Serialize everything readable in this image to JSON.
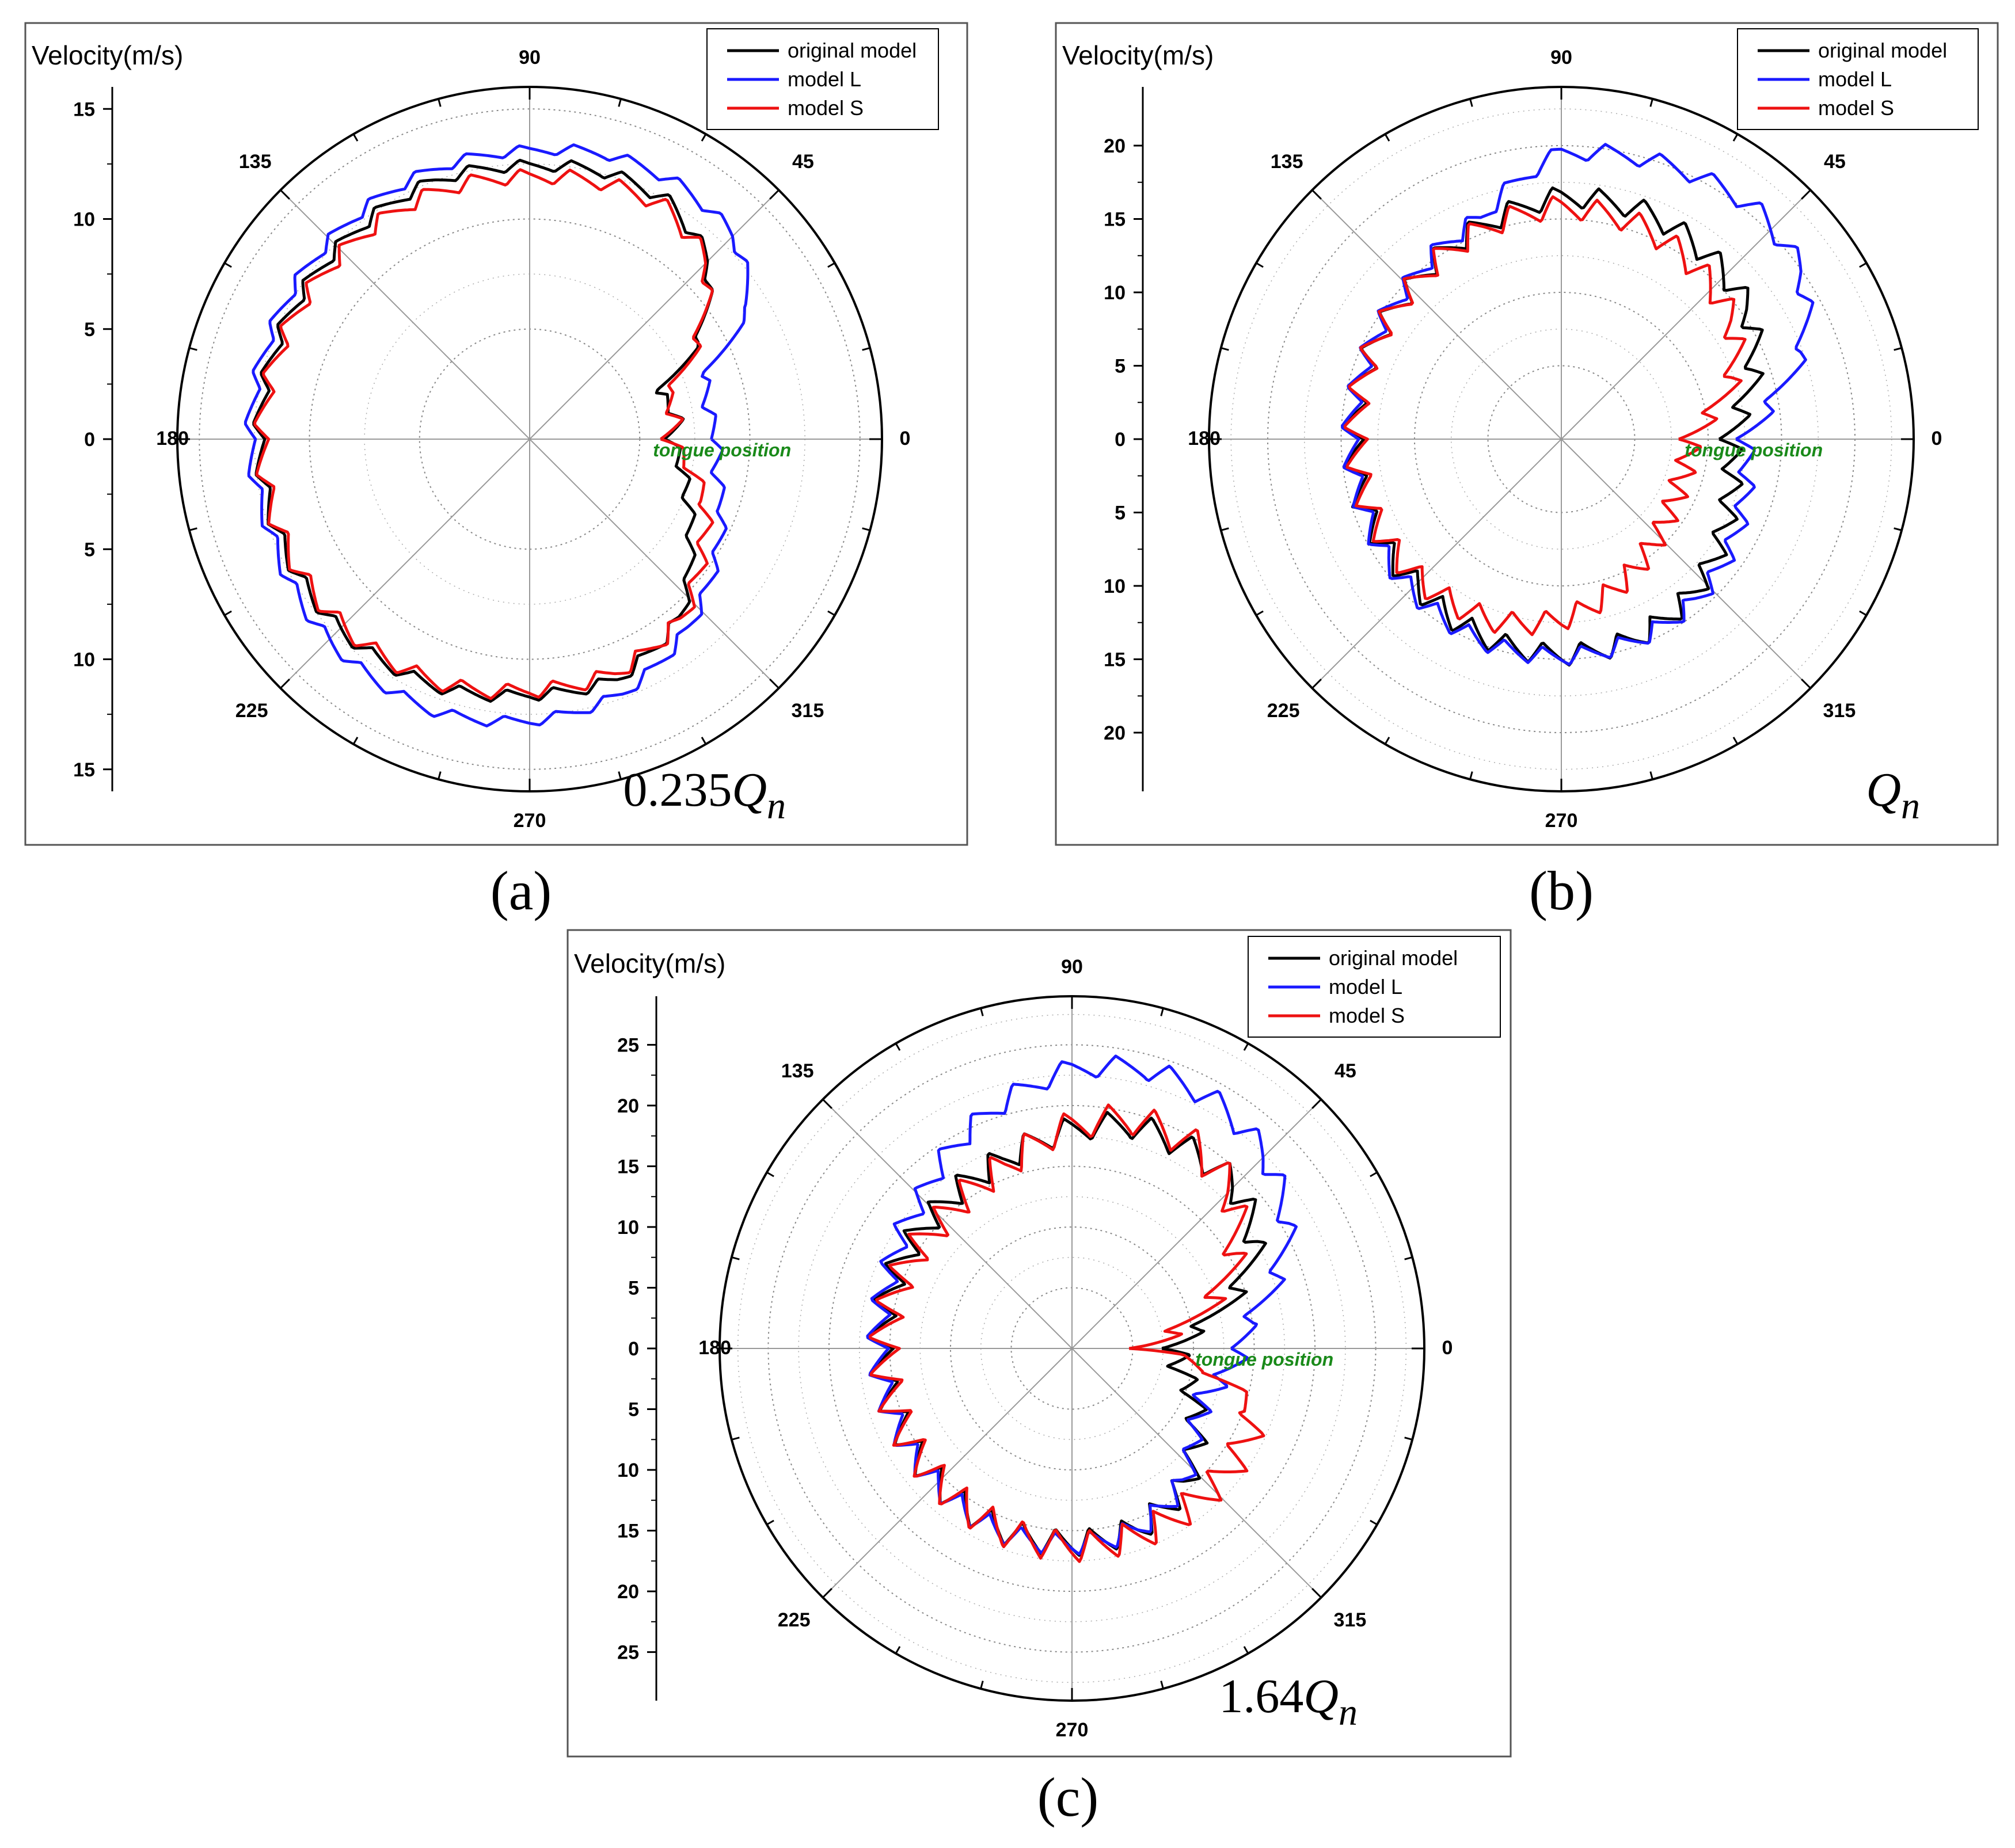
{
  "figure": {
    "panel_labels": [
      "(a)",
      "(b)",
      "(c)"
    ],
    "legend_color": "#000000",
    "tongue_color": "#1a8a1a"
  },
  "chart_data": [
    {
      "type": "polar-line",
      "panel": "(a)",
      "ylabel": "Velocity(m/s)",
      "flow_rate": "0.235",
      "flow_symbol": "Q",
      "flow_subscript": "n",
      "r_max": 16,
      "r_ticks": [
        15,
        10,
        5,
        0,
        5,
        10,
        15
      ],
      "angle_labels": [
        "0",
        "45",
        "90",
        "135",
        "180",
        "225",
        "270",
        "315"
      ],
      "annotation": "tongue position",
      "series": [
        {
          "name": "original model",
          "color": "#000000",
          "base": 12.5,
          "points": [
            [
              0,
              6.4
            ],
            [
              8,
              6.8
            ],
            [
              20,
              6.2
            ],
            [
              30,
              8.8
            ],
            [
              45,
              11.5
            ],
            [
              60,
              12.5
            ],
            [
              75,
              12.6
            ],
            [
              90,
              12.4
            ],
            [
              110,
              12.5
            ],
            [
              135,
              12.3
            ],
            [
              160,
              12.3
            ],
            [
              180,
              12.3
            ],
            [
              200,
              12.2
            ],
            [
              225,
              12.2
            ],
            [
              250,
              12.0
            ],
            [
              270,
              11.6
            ],
            [
              290,
              11.6
            ],
            [
              310,
              10.6
            ],
            [
              325,
              8.9
            ],
            [
              340,
              7.6
            ],
            [
              360,
              6.4
            ]
          ],
          "ripple": 0.55,
          "teeth": 34
        },
        {
          "name": "model L",
          "color": "#1a1aff",
          "points": [
            [
              0,
              8.5
            ],
            [
              10,
              8.2
            ],
            [
              20,
              8.4
            ],
            [
              32,
              11.8
            ],
            [
              45,
              13.1
            ],
            [
              60,
              13.4
            ],
            [
              75,
              13.4
            ],
            [
              90,
              13.1
            ],
            [
              110,
              13.0
            ],
            [
              135,
              12.8
            ],
            [
              160,
              12.7
            ],
            [
              180,
              12.7
            ],
            [
              200,
              12.5
            ],
            [
              225,
              12.9
            ],
            [
              250,
              13.1
            ],
            [
              270,
              12.8
            ],
            [
              290,
              12.3
            ],
            [
              310,
              11.2
            ],
            [
              325,
              10.2
            ],
            [
              340,
              9.3
            ],
            [
              350,
              8.6
            ],
            [
              360,
              8.5
            ]
          ],
          "ripple": 0.5,
          "teeth": 34
        },
        {
          "name": "model S",
          "color": "#ee1111",
          "points": [
            [
              0,
              6.3
            ],
            [
              8,
              6.7
            ],
            [
              18,
              6.5
            ],
            [
              28,
              8.4
            ],
            [
              45,
              11.4
            ],
            [
              60,
              12.2
            ],
            [
              75,
              12.1
            ],
            [
              90,
              11.9
            ],
            [
              110,
              12.0
            ],
            [
              135,
              12.0
            ],
            [
              160,
              12.1
            ],
            [
              180,
              12.2
            ],
            [
              200,
              12.1
            ],
            [
              225,
              12.0
            ],
            [
              250,
              11.8
            ],
            [
              270,
              11.4
            ],
            [
              290,
              11.3
            ],
            [
              310,
              10.7
            ],
            [
              325,
              9.5
            ],
            [
              340,
              8.5
            ],
            [
              360,
              6.3
            ]
          ],
          "ripple": 0.7,
          "teeth": 34
        }
      ]
    },
    {
      "type": "polar-line",
      "panel": "(b)",
      "ylabel": "Velocity(m/s)",
      "flow_rate": "",
      "flow_symbol": "Q",
      "flow_subscript": "n",
      "r_max": 24,
      "r_ticks": [
        20,
        15,
        10,
        5,
        0,
        5,
        10,
        15,
        20
      ],
      "angle_labels": [
        "0",
        "45",
        "90",
        "135",
        "180",
        "225",
        "270",
        "315"
      ],
      "annotation": "tongue position",
      "series": [
        {
          "name": "original model",
          "color": "#000000",
          "points": [
            [
              0,
              11.5
            ],
            [
              10,
              12.5
            ],
            [
              20,
              14.0
            ],
            [
              35,
              15.5
            ],
            [
              50,
              16.0
            ],
            [
              70,
              16.5
            ],
            [
              90,
              16.5
            ],
            [
              110,
              15.5
            ],
            [
              135,
              14.5
            ],
            [
              160,
              14.2
            ],
            [
              180,
              14.2
            ],
            [
              200,
              14.2
            ],
            [
              225,
              14.0
            ],
            [
              250,
              14.5
            ],
            [
              270,
              14.7
            ],
            [
              290,
              14.5
            ],
            [
              310,
              13.8
            ],
            [
              325,
              13.0
            ],
            [
              340,
              12.2
            ],
            [
              360,
              11.5
            ]
          ],
          "ripple": 1.5,
          "teeth": 34
        },
        {
          "name": "model L",
          "color": "#1a1aff",
          "points": [
            [
              0,
              12.5
            ],
            [
              10,
              14.5
            ],
            [
              20,
              17.5
            ],
            [
              35,
              20.0
            ],
            [
              50,
              20.5
            ],
            [
              70,
              20.0
            ],
            [
              90,
              19.5
            ],
            [
              110,
              16.0
            ],
            [
              135,
              14.8
            ],
            [
              160,
              14.4
            ],
            [
              180,
              14.4
            ],
            [
              200,
              14.3
            ],
            [
              225,
              14.5
            ],
            [
              250,
              14.8
            ],
            [
              270,
              14.8
            ],
            [
              290,
              14.6
            ],
            [
              310,
              14.3
            ],
            [
              325,
              13.8
            ],
            [
              340,
              13.2
            ],
            [
              360,
              12.5
            ]
          ],
          "ripple": 1.2,
          "teeth": 34
        },
        {
          "name": "model S",
          "color": "#ee1111",
          "points": [
            [
              0,
              8.8
            ],
            [
              8,
              10.0
            ],
            [
              20,
              12.5
            ],
            [
              35,
              14.2
            ],
            [
              50,
              14.8
            ],
            [
              70,
              15.5
            ],
            [
              90,
              15.8
            ],
            [
              110,
              15.3
            ],
            [
              135,
              14.5
            ],
            [
              160,
              14.2
            ],
            [
              180,
              14.0
            ],
            [
              200,
              13.9
            ],
            [
              225,
              13.6
            ],
            [
              250,
              13.2
            ],
            [
              270,
              12.3
            ],
            [
              290,
              10.8
            ],
            [
              310,
              9.5
            ],
            [
              325,
              8.9
            ],
            [
              340,
              8.6
            ],
            [
              360,
              8.8
            ]
          ],
          "ripple": 1.6,
          "teeth": 34
        }
      ]
    },
    {
      "type": "polar-line",
      "panel": "(c)",
      "ylabel": "Velocity(m/s)",
      "flow_rate": "1.64",
      "flow_symbol": "Q",
      "flow_subscript": "n",
      "r_max": 29,
      "r_ticks": [
        25,
        20,
        15,
        10,
        5,
        0,
        5,
        10,
        15,
        20,
        25
      ],
      "angle_labels": [
        "0",
        "45",
        "90",
        "135",
        "180",
        "225",
        "270",
        "315"
      ],
      "annotation": "tongue position",
      "series": [
        {
          "name": "original model",
          "color": "#000000",
          "points": [
            [
              0,
              8.5
            ],
            [
              8,
              10.0
            ],
            [
              18,
              14.0
            ],
            [
              30,
              17.5
            ],
            [
              45,
              19.0
            ],
            [
              60,
              19.0
            ],
            [
              75,
              19.0
            ],
            [
              90,
              18.0
            ],
            [
              110,
              16.5
            ],
            [
              135,
              15.8
            ],
            [
              160,
              15.8
            ],
            [
              180,
              15.8
            ],
            [
              200,
              15.5
            ],
            [
              225,
              15.6
            ],
            [
              250,
              16.0
            ],
            [
              270,
              16.0
            ],
            [
              290,
              15.8
            ],
            [
              310,
              14.5
            ],
            [
              325,
              12.5
            ],
            [
              340,
              10.5
            ],
            [
              350,
              9.0
            ],
            [
              360,
              8.5
            ]
          ],
          "ripple": 2.2,
          "teeth": 34
        },
        {
          "name": "model L",
          "color": "#1a1aff",
          "points": [
            [
              0,
              14.0
            ],
            [
              8,
              14.5
            ],
            [
              18,
              17.5
            ],
            [
              30,
              20.5
            ],
            [
              45,
              22.5
            ],
            [
              60,
              23.5
            ],
            [
              75,
              23.8
            ],
            [
              90,
              23.0
            ],
            [
              110,
              20.5
            ],
            [
              135,
              17.5
            ],
            [
              160,
              16.2
            ],
            [
              180,
              16.0
            ],
            [
              200,
              15.8
            ],
            [
              225,
              15.8
            ],
            [
              250,
              16.2
            ],
            [
              270,
              16.1
            ],
            [
              290,
              15.8
            ],
            [
              310,
              14.3
            ],
            [
              325,
              12.2
            ],
            [
              340,
              11.5
            ],
            [
              350,
              12.8
            ],
            [
              360,
              14.0
            ]
          ],
          "ripple": 1.8,
          "teeth": 34
        },
        {
          "name": "model S",
          "color": "#ee1111",
          "points": [
            [
              0,
              6.0
            ],
            [
              8,
              8.0
            ],
            [
              18,
              12.0
            ],
            [
              30,
              15.5
            ],
            [
              45,
              18.5
            ],
            [
              60,
              19.5
            ],
            [
              75,
              19.5
            ],
            [
              90,
              18.3
            ],
            [
              110,
              16.0
            ],
            [
              135,
              15.0
            ],
            [
              160,
              15.3
            ],
            [
              180,
              15.5
            ],
            [
              200,
              15.4
            ],
            [
              225,
              15.5
            ],
            [
              250,
              16.0
            ],
            [
              270,
              16.3
            ],
            [
              290,
              16.3
            ],
            [
              310,
              16.2
            ],
            [
              325,
              16.3
            ],
            [
              340,
              16.0
            ],
            [
              350,
              12.0
            ],
            [
              360,
              6.0
            ]
          ],
          "ripple": 2.6,
          "teeth": 34
        }
      ]
    }
  ]
}
